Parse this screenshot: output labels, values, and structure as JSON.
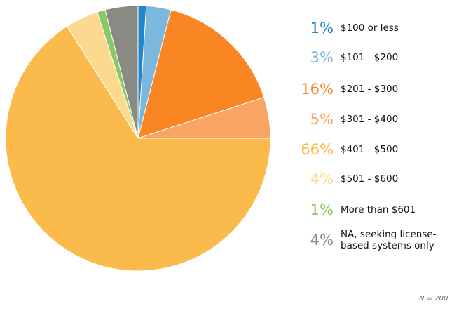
{
  "chart_data": {
    "type": "pie",
    "categories": [
      "$100 or less",
      "$101 - $200",
      "$201 - $300",
      "$301 - $400",
      "$401 - $500",
      "$501 - $600",
      "More than $601",
      "NA, seeking license-based systems only"
    ],
    "values": [
      1,
      3,
      16,
      5,
      66,
      4,
      1,
      4
    ],
    "percent_labels": [
      "1%",
      "3%",
      "16%",
      "5%",
      "66%",
      "4%",
      "1%",
      "4%"
    ],
    "colors": [
      "#2187c6",
      "#7ab8de",
      "#fa8623",
      "#f9a462",
      "#fbba4c",
      "#fbd98e",
      "#8ac865",
      "#8a8a84"
    ],
    "legend_position": "right",
    "start_angle_deg": 90,
    "direction": "clockwise",
    "note": "N = 200"
  }
}
